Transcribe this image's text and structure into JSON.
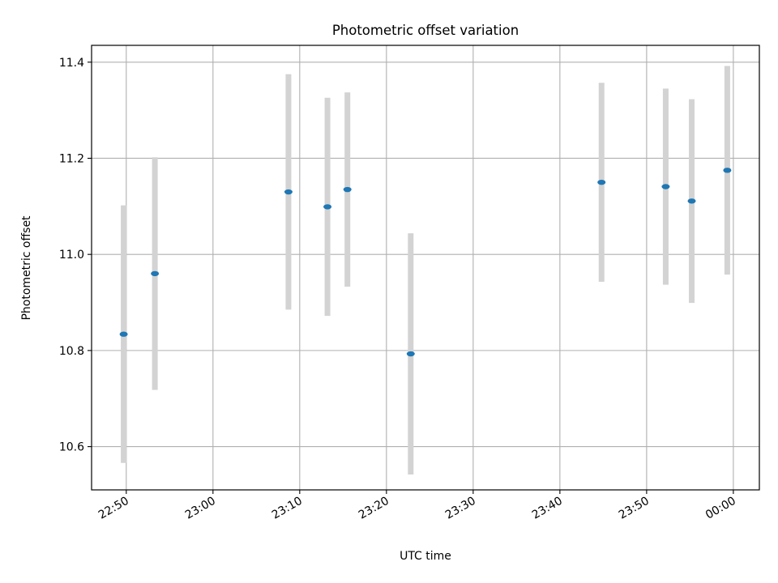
{
  "chart_data": {
    "type": "scatter",
    "title": "Photometric offset variation",
    "xlabel": "UTC time",
    "ylabel": "Photometric offset",
    "x_tick_labels": [
      "22:50",
      "23:00",
      "23:10",
      "23:20",
      "23:30",
      "23:40",
      "23:50",
      "00:00"
    ],
    "x_tick_minutes": [
      0,
      10,
      20,
      30,
      40,
      50,
      60,
      70
    ],
    "xlim_minutes": [
      -4,
      73
    ],
    "y_ticks": [
      10.6,
      10.8,
      11.0,
      11.2,
      11.4
    ],
    "y_tick_labels": [
      "10.6",
      "10.8",
      "11.0",
      "11.2",
      "11.4"
    ],
    "ylim": [
      10.51,
      11.435
    ],
    "grid": true,
    "series": [
      {
        "marker_color": "#1f77b4",
        "errorbar_color": "#d3d3d3",
        "points": [
          {
            "t": "22:49:40",
            "minutes": -0.3,
            "y": 10.834,
            "err": 0.268
          },
          {
            "t": "22:53:20",
            "minutes": 3.3,
            "y": 10.96,
            "err": 0.242
          },
          {
            "t": "23:08:40",
            "minutes": 18.7,
            "y": 11.13,
            "err": 0.245
          },
          {
            "t": "23:13:10",
            "minutes": 23.2,
            "y": 11.099,
            "err": 0.227
          },
          {
            "t": "23:15:30",
            "minutes": 25.5,
            "y": 11.135,
            "err": 0.202
          },
          {
            "t": "23:22:50",
            "minutes": 32.8,
            "y": 10.793,
            "err": 0.251
          },
          {
            "t": "23:44:50",
            "minutes": 54.8,
            "y": 11.15,
            "err": 0.207
          },
          {
            "t": "23:52:10",
            "minutes": 62.2,
            "y": 11.141,
            "err": 0.204
          },
          {
            "t": "23:55:10",
            "minutes": 65.2,
            "y": 11.111,
            "err": 0.212
          },
          {
            "t": "23:59:20",
            "minutes": 69.3,
            "y": 11.175,
            "err": 0.217
          }
        ]
      }
    ]
  }
}
